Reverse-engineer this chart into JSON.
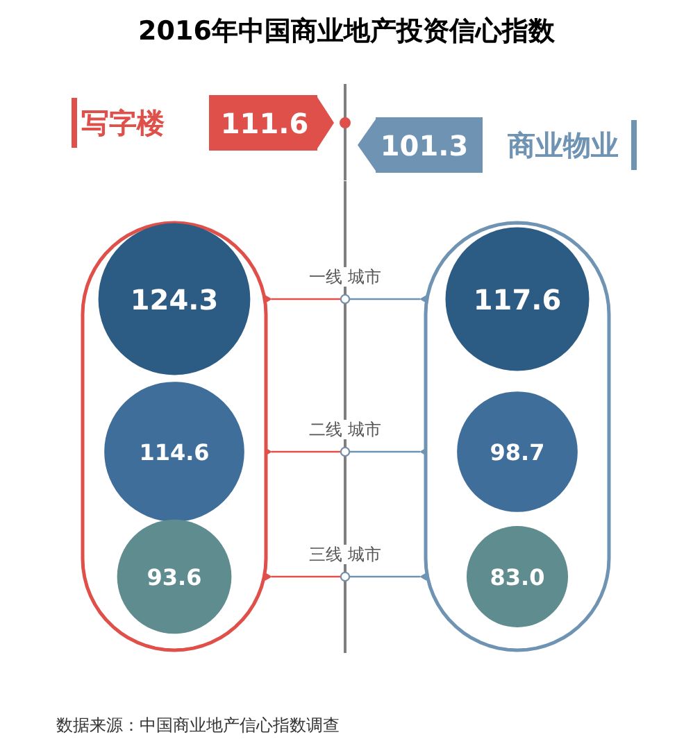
{
  "chart_data": [
    {
      "type": "other",
      "title": "2016年中国商业地产投资信心指数",
      "data_labels": true,
      "categories": [
        "写字楼",
        "商业物业"
      ],
      "values": [
        111.6,
        101.3
      ],
      "colors": [
        "#e0504a",
        "#6f93b3"
      ]
    },
    {
      "type": "other",
      "data_labels": true,
      "categories": [
        "一线 城市",
        "二线 城市",
        "三线 城市"
      ],
      "series": [
        {
          "color": "#e0504a",
          "values": [
            124.3,
            114.6,
            93.6
          ],
          "value_labels": [
            "124.3",
            "114.6",
            "93.6"
          ],
          "colors": [
            "#2c5b84",
            "#3f6e9a",
            "#5f8c8f"
          ]
        },
        {
          "color": "#6f93b3",
          "values": [
            117.6,
            98.7,
            83.0
          ],
          "value_labels": [
            "117.6",
            "98.7",
            "83.0"
          ],
          "colors": [
            "#2c5b84",
            "#3f6e9a",
            "#5f8c8f"
          ]
        }
      ],
      "annotations": [
        "数据来源：中国商业地产信心指数调查"
      ]
    }
  ]
}
